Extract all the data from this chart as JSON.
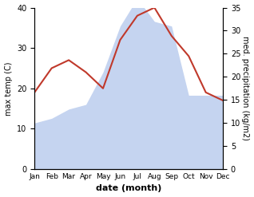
{
  "months": [
    "Jan",
    "Feb",
    "Mar",
    "Apr",
    "May",
    "Jun",
    "Jul",
    "Aug",
    "Sep",
    "Oct",
    "Nov",
    "Dec"
  ],
  "temperature": [
    19,
    25,
    27,
    24,
    20,
    32,
    38,
    40,
    33,
    28,
    19,
    17
  ],
  "precipitation": [
    10,
    11,
    13,
    14,
    21,
    31,
    37,
    32,
    31,
    16,
    16,
    16
  ],
  "temp_color": "#c0392b",
  "precip_color": "#c5d4f0",
  "temp_ylim": [
    0,
    40
  ],
  "precip_ylim": [
    0,
    35
  ],
  "xlabel": "date (month)",
  "ylabel_left": "max temp (C)",
  "ylabel_right": "med. precipitation (kg/m2)",
  "background_color": "#ffffff"
}
